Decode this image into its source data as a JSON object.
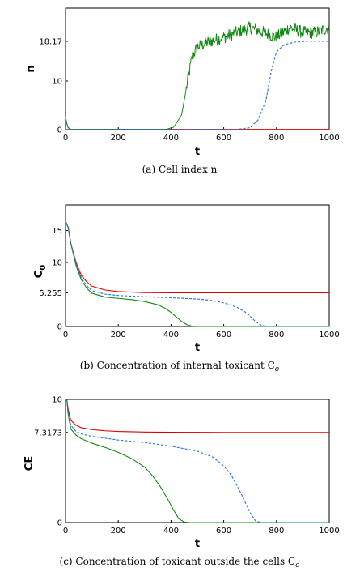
{
  "chart_data": [
    {
      "type": "line",
      "caption": "(a) Cell index n",
      "xlabel": "t",
      "ylabel": "n",
      "xlim": [
        0,
        1000
      ],
      "ylim": [
        0,
        25
      ],
      "xticks": [
        "0",
        "200",
        "400",
        "600",
        "800",
        "1000"
      ],
      "yticks": [
        "0",
        "10",
        "18.17"
      ],
      "series": [
        {
          "color": "#dd0000",
          "style": "solid",
          "x": [
            0,
            5,
            10,
            20,
            1000
          ],
          "y": [
            2.5,
            1.2,
            0.4,
            0.05,
            0.05
          ]
        },
        {
          "color": "#118811",
          "style": "noisy",
          "x": [
            0,
            5,
            10,
            20,
            380,
            410,
            440,
            460,
            480,
            500,
            540,
            600,
            650,
            700,
            750,
            800,
            850,
            900,
            950,
            1000
          ],
          "y": [
            2.5,
            1.2,
            0.4,
            0.05,
            0.05,
            0.5,
            3,
            9,
            15,
            17,
            18,
            19,
            20,
            21,
            20,
            19,
            21,
            20,
            20,
            21
          ]
        },
        {
          "color": "#1e6fdc",
          "style": "dashed",
          "x": [
            0,
            5,
            10,
            20,
            650,
            700,
            730,
            760,
            780,
            800,
            830,
            870,
            920,
            1000
          ],
          "y": [
            2.5,
            1.2,
            0.4,
            0.05,
            0.05,
            0.4,
            2,
            6,
            12,
            16,
            17.5,
            18,
            18.2,
            18.17
          ]
        }
      ]
    },
    {
      "type": "line",
      "caption": "(b) Concentration of internal toxicant C",
      "caption_sub": "o",
      "xlabel": "t",
      "ylabel": "C",
      "ylabel_sub": "0",
      "xlim": [
        0,
        1000
      ],
      "ylim": [
        0,
        19
      ],
      "xticks": [
        "0",
        "200",
        "400",
        "600",
        "800",
        "1000"
      ],
      "yticks": [
        "0",
        "5.255",
        "10",
        "15"
      ],
      "series": [
        {
          "color": "#dd0000",
          "style": "solid",
          "x": [
            0,
            10,
            20,
            40,
            60,
            80,
            100,
            150,
            200,
            300,
            400,
            600,
            800,
            1000
          ],
          "y": [
            16.5,
            15.5,
            13,
            10,
            8,
            7,
            6.3,
            5.7,
            5.45,
            5.3,
            5.26,
            5.255,
            5.255,
            5.255
          ]
        },
        {
          "color": "#118811",
          "style": "solid",
          "x": [
            0,
            10,
            20,
            40,
            60,
            80,
            100,
            150,
            200,
            250,
            300,
            350,
            380,
            400,
            420,
            440,
            460,
            480,
            500,
            1000
          ],
          "y": [
            16.5,
            15.5,
            13,
            9.5,
            7.3,
            6,
            5.2,
            4.6,
            4.4,
            4.2,
            3.9,
            3.4,
            2.8,
            2.2,
            1.5,
            0.8,
            0.3,
            0.05,
            0,
            0
          ]
        },
        {
          "color": "#1e6fdc",
          "style": "dashed",
          "x": [
            0,
            10,
            20,
            40,
            60,
            80,
            100,
            150,
            200,
            300,
            400,
            500,
            550,
            600,
            650,
            680,
            700,
            720,
            740,
            760,
            1000
          ],
          "y": [
            16.5,
            15.5,
            13,
            9.8,
            7.6,
            6.4,
            5.6,
            5.05,
            4.85,
            4.65,
            4.5,
            4.3,
            4.1,
            3.7,
            3.0,
            2.3,
            1.6,
            0.8,
            0.25,
            0.02,
            0
          ]
        }
      ]
    },
    {
      "type": "line",
      "caption": "(c) Concentration of toxicant outside the cells C",
      "caption_sub": "e",
      "xlabel": "t",
      "ylabel": "CE",
      "xlim": [
        0,
        1000
      ],
      "ylim": [
        0,
        10
      ],
      "xticks": [
        "0",
        "200",
        "400",
        "600",
        "800",
        "1000"
      ],
      "yticks": [
        "0",
        "7.3173",
        "10"
      ],
      "series": [
        {
          "color": "#dd0000",
          "style": "solid",
          "x": [
            0,
            5,
            10,
            20,
            40,
            60,
            100,
            150,
            200,
            300,
            400,
            600,
            800,
            1000
          ],
          "y": [
            10,
            9.95,
            9.2,
            8.3,
            7.9,
            7.7,
            7.55,
            7.45,
            7.4,
            7.35,
            7.33,
            7.32,
            7.3173,
            7.3173
          ]
        },
        {
          "color": "#118811",
          "style": "solid",
          "x": [
            0,
            5,
            10,
            20,
            40,
            60,
            100,
            150,
            200,
            250,
            300,
            330,
            360,
            390,
            410,
            430,
            450,
            470,
            1000
          ],
          "y": [
            10,
            9.95,
            8.8,
            7.6,
            7.1,
            6.8,
            6.45,
            6.1,
            5.7,
            5.2,
            4.5,
            3.8,
            2.9,
            1.8,
            1.0,
            0.3,
            0.05,
            0,
            0
          ]
        },
        {
          "color": "#1e6fdc",
          "style": "dashed",
          "x": [
            0,
            5,
            10,
            20,
            40,
            60,
            100,
            200,
            300,
            400,
            500,
            560,
            600,
            630,
            660,
            680,
            700,
            720,
            740,
            1000
          ],
          "y": [
            10,
            9.95,
            9.0,
            7.9,
            7.4,
            7.2,
            7.0,
            6.7,
            6.5,
            6.2,
            5.8,
            5.3,
            4.6,
            3.8,
            2.6,
            1.7,
            0.8,
            0.15,
            0,
            0
          ]
        }
      ]
    }
  ]
}
